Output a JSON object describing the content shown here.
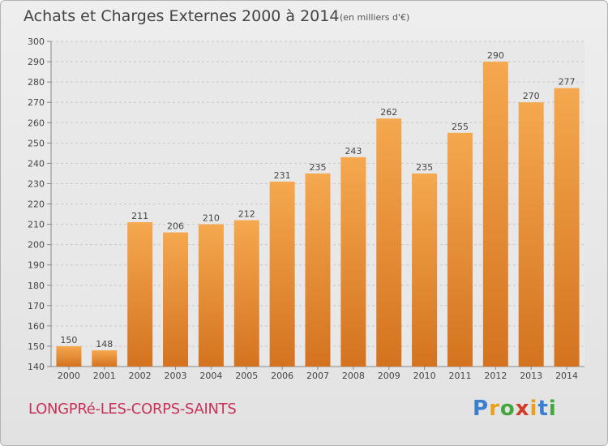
{
  "header": {
    "title": "Achats et Charges Externes 2000 à 2014",
    "unit": "(en milliers d'€)"
  },
  "footer": {
    "place": "LONGPRé-LES-CORPS-SAINTS",
    "logo_letters": [
      "P",
      "r",
      "o",
      "x",
      "i",
      "t",
      "i"
    ],
    "logo_colors": [
      "#3a7fd0",
      "#e8a020",
      "#43a83c",
      "#d23a2a",
      "#e8a020",
      "#3a7fd0",
      "#43a83c"
    ]
  },
  "chart_data": {
    "type": "bar",
    "categories": [
      "2000",
      "2001",
      "2002",
      "2003",
      "2004",
      "2005",
      "2006",
      "2007",
      "2008",
      "2009",
      "2010",
      "2011",
      "2012",
      "2013",
      "2014"
    ],
    "values": [
      150,
      148,
      211,
      206,
      210,
      212,
      231,
      235,
      243,
      262,
      235,
      255,
      290,
      270,
      277
    ],
    "ylim": [
      140,
      300
    ],
    "yticks": [
      140,
      150,
      160,
      170,
      180,
      190,
      200,
      210,
      220,
      230,
      240,
      250,
      260,
      270,
      280,
      290,
      300
    ],
    "grid": true,
    "bar_color_top": "#f5a84f",
    "bar_color_bottom": "#d4731f"
  }
}
